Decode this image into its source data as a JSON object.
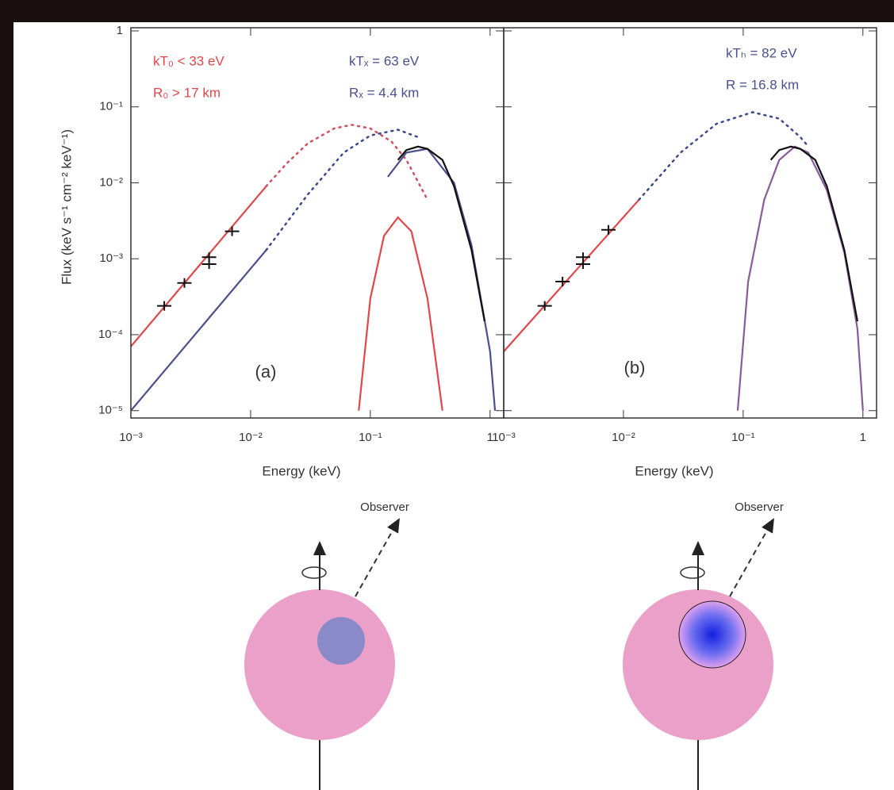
{
  "chart_data": [
    {
      "type": "line",
      "log_x": true,
      "log_y": true,
      "y_label": "Flux (keV s⁻¹ cm⁻² keV⁻¹)",
      "x_label": "Energy (keV)",
      "xlim": [
        0.001,
        1.3
      ],
      "ylim": [
        8e-06,
        1.1
      ],
      "xticks": [
        {
          "value": 0.001,
          "label": "10⁻³"
        },
        {
          "value": 0.01,
          "label": "10⁻²"
        },
        {
          "value": 0.1,
          "label": "10⁻¹"
        },
        1
      ],
      "yticks": [
        1,
        {
          "value": 0.1,
          "label": "10⁻¹"
        },
        {
          "value": 0.01,
          "label": "10⁻²"
        },
        {
          "value": 0.001,
          "label": "10⁻³"
        },
        {
          "value": 0.0001,
          "label": "10⁻⁴"
        },
        {
          "value": 1e-05,
          "label": "10⁻⁵"
        }
      ],
      "show_y_tick_labels": true,
      "annotations": [
        {
          "text": "kT₀  < 33 eV",
          "color": "#e0474c"
        },
        {
          "text": "R₀  > 17 km",
          "color": "#e0474c"
        },
        {
          "text": "kTₓ = 63 eV",
          "color": "#4a4f8f"
        },
        {
          "text": "Rₓ  = 4.4 km",
          "color": "#4a4f8f"
        },
        {
          "text": "(a)",
          "color": "#333333"
        }
      ],
      "series": [
        {
          "style": "solid",
          "color": "#e0474c",
          "x": [
            0.001,
            0.0135
          ],
          "values": [
            7e-05,
            0.009
          ]
        },
        {
          "style": "dotted",
          "color": "#d05060",
          "x": [
            0.0135,
            0.02,
            0.03,
            0.05,
            0.07,
            0.1,
            0.15,
            0.2,
            0.3
          ],
          "values": [
            0.009,
            0.018,
            0.033,
            0.052,
            0.058,
            0.052,
            0.035,
            0.02,
            0.006
          ]
        },
        {
          "style": "solid",
          "color": "#4a4f8f",
          "x": [
            0.001,
            0.0135
          ],
          "values": [
            1e-05,
            0.0013
          ]
        },
        {
          "style": "dotted",
          "color": "#3a4a8a",
          "x": [
            0.0135,
            0.03,
            0.06,
            0.1,
            0.17,
            0.25
          ],
          "values": [
            0.0013,
            0.007,
            0.025,
            0.042,
            0.05,
            0.04
          ]
        },
        {
          "style": "solid",
          "color": "#e0474c",
          "x": [
            0.08,
            0.1,
            0.13,
            0.17,
            0.22,
            0.3,
            0.4
          ],
          "values": [
            1e-05,
            0.0003,
            0.002,
            0.0035,
            0.0023,
            0.0003,
            1e-05
          ]
        },
        {
          "style": "solid",
          "color": "#4a4f8f",
          "x": [
            0.14,
            0.2,
            0.3,
            0.5,
            0.7,
            1,
            1.1
          ],
          "values": [
            0.012,
            0.025,
            0.028,
            0.01,
            0.0015,
            6e-05,
            1e-05
          ]
        },
        {
          "style": "solid",
          "color": "#111111",
          "x": [
            0.17,
            0.2,
            0.25,
            0.3,
            0.4,
            0.5,
            0.7,
            0.9
          ],
          "values": [
            0.02,
            0.027,
            0.03,
            0.028,
            0.02,
            0.009,
            0.0013,
            0.00015
          ]
        },
        {
          "style": "points",
          "color": "#111111",
          "x": [
            0.0019,
            0.0028,
            0.0045,
            0.0045,
            0.007
          ],
          "values": [
            0.00024,
            0.00048,
            0.00105,
            0.00085,
            0.0023
          ]
        }
      ]
    },
    {
      "type": "line",
      "log_x": true,
      "log_y": true,
      "x_label": "Energy (keV)",
      "xlim": [
        0.001,
        1.3
      ],
      "ylim": [
        8e-06,
        1.1
      ],
      "xticks": [
        {
          "value": 0.001,
          "label": "10⁻³"
        },
        {
          "value": 0.01,
          "label": "10⁻²"
        },
        {
          "value": 0.1,
          "label": "10⁻¹"
        },
        1
      ],
      "yticks": [
        1,
        0.1,
        0.01,
        0.001,
        0.0001,
        1e-05
      ],
      "show_y_tick_labels": false,
      "annotations": [
        {
          "text": "kTₕ = 82 eV",
          "color": "#4a4f8f"
        },
        {
          "text": "R    = 16.8 km",
          "color": "#4a4f8f"
        },
        {
          "text": "(b)",
          "color": "#333333"
        }
      ],
      "series": [
        {
          "style": "solid",
          "color": "#e0474c",
          "x": [
            0.001,
            0.0135
          ],
          "values": [
            6e-05,
            0.006
          ]
        },
        {
          "style": "dotted",
          "color": "#3a4a8a",
          "x": [
            0.0135,
            0.03,
            0.06,
            0.12,
            0.2,
            0.3,
            0.35
          ],
          "values": [
            0.006,
            0.025,
            0.06,
            0.085,
            0.07,
            0.04,
            0.03
          ]
        },
        {
          "style": "solid",
          "color": "#8a5a9a",
          "x": [
            0.09,
            0.11,
            0.15,
            0.2,
            0.27,
            0.35,
            0.5,
            0.7,
            0.9,
            1.0
          ],
          "values": [
            1e-05,
            0.0005,
            0.006,
            0.02,
            0.03,
            0.025,
            0.008,
            0.0012,
            0.00012,
            1e-05
          ]
        },
        {
          "style": "solid",
          "color": "#111111",
          "x": [
            0.17,
            0.2,
            0.25,
            0.3,
            0.4,
            0.5,
            0.7,
            0.9
          ],
          "values": [
            0.02,
            0.027,
            0.03,
            0.028,
            0.02,
            0.009,
            0.0013,
            0.00015
          ]
        },
        {
          "style": "points",
          "color": "#111111",
          "x": [
            0.0022,
            0.0031,
            0.0046,
            0.0046,
            0.0075
          ],
          "values": [
            0.00024,
            0.0005,
            0.00105,
            0.00085,
            0.0024
          ]
        }
      ]
    }
  ],
  "diagrams": [
    {
      "label": "Observer"
    },
    {
      "label": "Observer"
    }
  ]
}
